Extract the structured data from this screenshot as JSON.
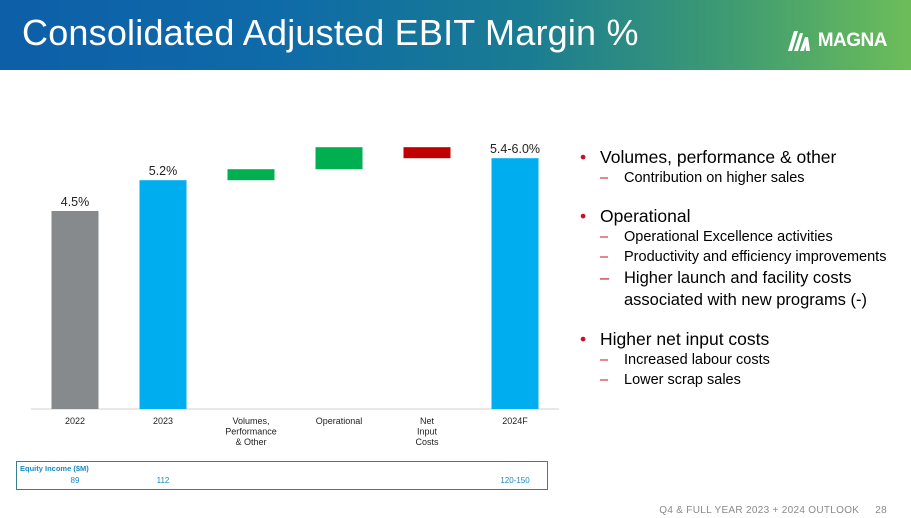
{
  "header": {
    "title": "Consolidated Adjusted EBIT Margin %",
    "logo_text": "MAGNA",
    "logo_icon": "magna-chevrons-icon"
  },
  "chart_data": {
    "type": "bar",
    "subtype": "waterfall",
    "title": "Consolidated Adjusted EBIT Margin %",
    "categories": [
      "2022",
      "2023",
      "Volumes, Performance & Other",
      "Operational",
      "Net Input Costs",
      "2024F"
    ],
    "category_lines": [
      [
        "2022"
      ],
      [
        "2023"
      ],
      [
        "Volumes,",
        "Performance",
        "& Other"
      ],
      [
        "Operational"
      ],
      [
        "Net",
        "Input",
        "Costs"
      ],
      [
        "2024F"
      ]
    ],
    "bars": [
      {
        "kind": "total",
        "value": 4.5,
        "label": "4.5%",
        "color": "#868a8c"
      },
      {
        "kind": "total",
        "value": 5.2,
        "label": "5.2%",
        "color": "#00aeef"
      },
      {
        "kind": "increase",
        "from": 5.2,
        "to": 5.45,
        "label": "",
        "color": "#00b050"
      },
      {
        "kind": "increase",
        "from": 5.45,
        "to": 5.95,
        "label": "",
        "color": "#00b050"
      },
      {
        "kind": "decrease",
        "from": 5.95,
        "to": 5.7,
        "label": "",
        "color": "#c00000"
      },
      {
        "kind": "total",
        "value": 5.7,
        "label": "5.4-6.0%",
        "color": "#00aeef"
      }
    ],
    "ylim": [
      0,
      6.0
    ],
    "xlabel": "",
    "ylabel": "",
    "legend": "none",
    "grid": false
  },
  "bullets": [
    {
      "text": "Volumes, performance & other",
      "subs": [
        {
          "text": "Contribution on higher sales",
          "large": false
        }
      ]
    },
    {
      "text": "Operational",
      "subs": [
        {
          "text": "Operational Excellence activities",
          "large": false
        },
        {
          "text": "Productivity and efficiency improvements",
          "large": false
        },
        {
          "text": "Higher launch and facility costs associated with new programs (-)",
          "large": true
        }
      ]
    },
    {
      "text": "Higher net input costs",
      "subs": [
        {
          "text": "Increased labour costs",
          "large": false
        },
        {
          "text": "Lower scrap sales",
          "large": false
        }
      ]
    }
  ],
  "equity": {
    "label": "Equity Income ($M)",
    "values": [
      "89",
      "112",
      "",
      "",
      "",
      "120-150"
    ]
  },
  "footer": {
    "text": "Q4 & FULL YEAR 2023 + 2024 OUTLOOK",
    "page": "28"
  }
}
